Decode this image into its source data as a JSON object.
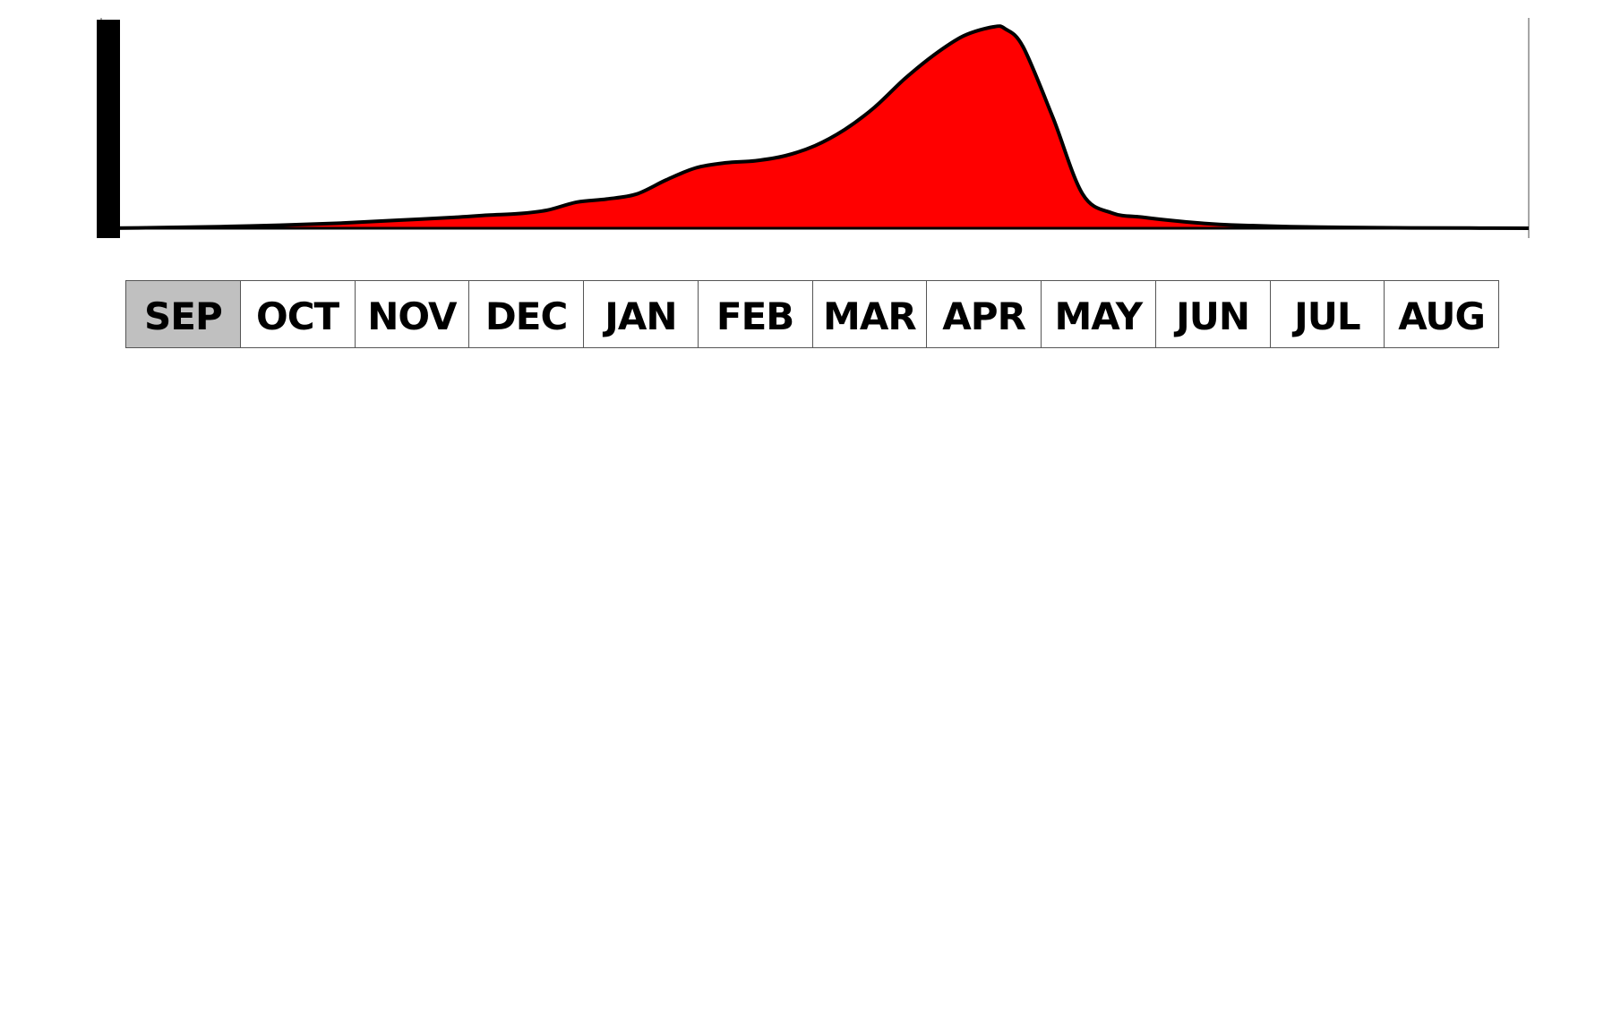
{
  "chart_data": {
    "type": "area",
    "x_unit": "months_from_sep",
    "xlim": [
      0,
      12
    ],
    "ylim": [
      0,
      1.0
    ],
    "x": [
      0,
      0.5,
      1,
      1.5,
      2,
      2.5,
      3,
      3.25,
      3.5,
      3.75,
      4,
      4.25,
      4.5,
      4.75,
      5,
      5.25,
      5.5,
      5.75,
      6,
      6.25,
      6.5,
      6.75,
      7,
      7.25,
      7.5,
      7.6,
      7.75,
      8,
      8.25,
      8.5,
      8.75,
      9,
      9.25,
      9.5,
      10,
      10.5,
      11,
      11.5,
      12
    ],
    "y": [
      0,
      0.003,
      0.008,
      0.015,
      0.025,
      0.04,
      0.055,
      0.065,
      0.072,
      0.09,
      0.13,
      0.145,
      0.17,
      0.24,
      0.3,
      0.325,
      0.335,
      0.36,
      0.41,
      0.49,
      0.6,
      0.74,
      0.86,
      0.955,
      1.0,
      0.99,
      0.9,
      0.55,
      0.17,
      0.075,
      0.055,
      0.038,
      0.025,
      0.016,
      0.008,
      0.004,
      0.002,
      0.001,
      0
    ],
    "fill_color": "#ff0000",
    "line_color": "#000000",
    "marker_x": 0.06,
    "categories": [
      "SEP",
      "OCT",
      "NOV",
      "DEC",
      "JAN",
      "FEB",
      "MAR",
      "APR",
      "MAY",
      "JUN",
      "JUL",
      "AUG"
    ],
    "selected_category": "SEP",
    "selected_color": "#c0c0c0",
    "title": "",
    "xlabel": "",
    "ylabel": ""
  },
  "months": [
    "SEP",
    "OCT",
    "NOV",
    "DEC",
    "JAN",
    "FEB",
    "MAR",
    "APR",
    "MAY",
    "JUN",
    "JUL",
    "AUG"
  ]
}
